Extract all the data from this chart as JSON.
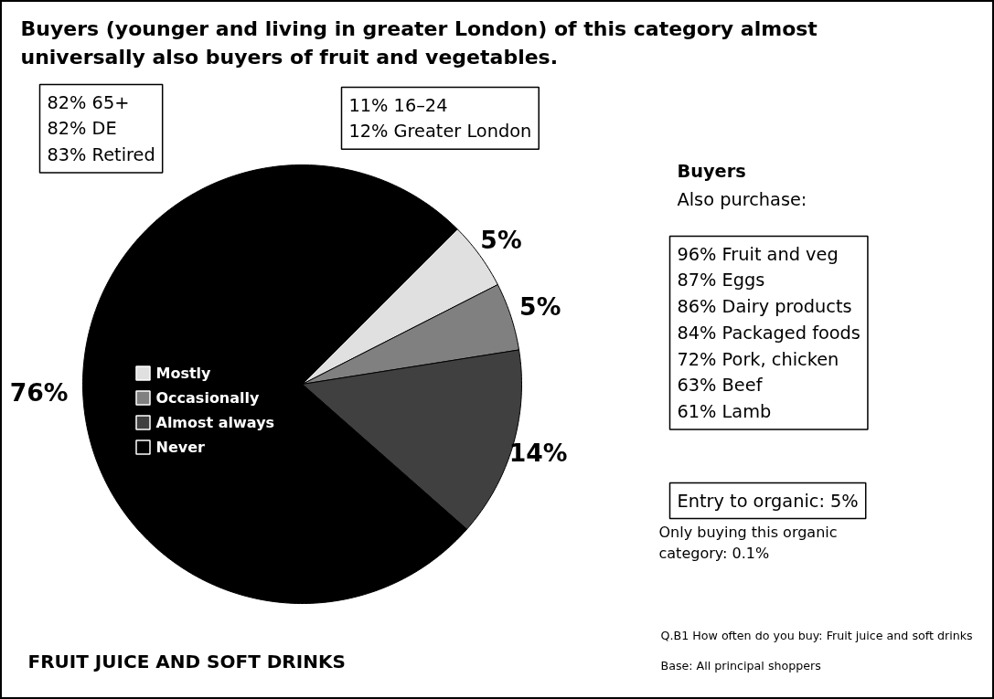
{
  "chart_data": {
    "type": "pie",
    "title": "Buyers (younger and living in greater London) of this category almost\nuniversally also buyers of fruit and vegetables.",
    "subtitle": "FRUIT JUICE AND SOFT DRINKS",
    "categories": [
      "Mostly",
      "Occasionally",
      "Almost always",
      "Never"
    ],
    "values": [
      5,
      5,
      14,
      76
    ],
    "colors": [
      "#e0e0e0",
      "#808080",
      "#404040",
      "#000000"
    ],
    "value_labels": [
      "5%",
      "5%",
      "14%",
      "76%"
    ],
    "legend": "left",
    "annotations": [
      "82% 65+\n82% DE\n83% Retired",
      "11% 16–24\n12% Greater London",
      "Buyers",
      "Also purchase:",
      "96% Fruit and veg\n87% Eggs\n86% Dairy products\n84% Packaged foods\n72% Pork, chicken\n63% Beef\n61% Lamb",
      "Entry to organic: 5%",
      "Only buying this organic\ncategory: 0.1%",
      "Q.B1 How often do you buy: Fruit juice and soft drinks",
      "Base: All principal shoppers"
    ]
  }
}
